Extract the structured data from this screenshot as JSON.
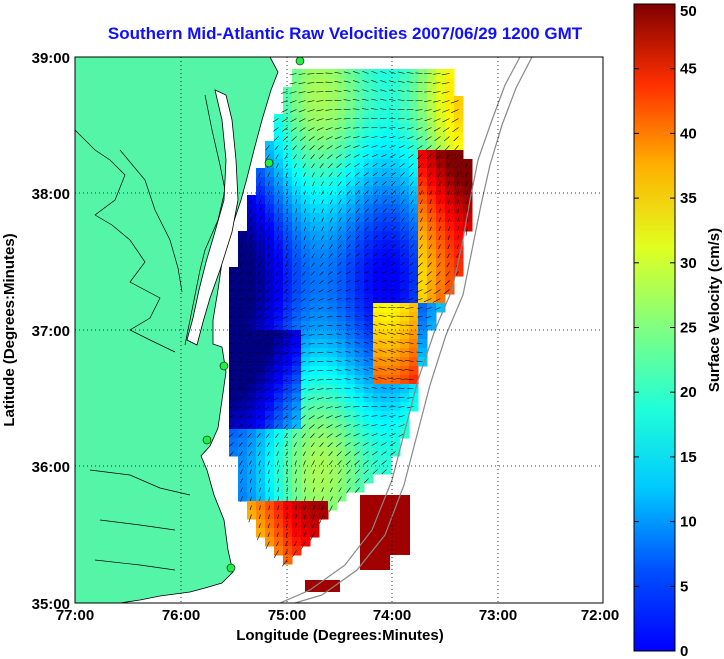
{
  "title": "Southern Mid-Atlantic Raw Velocities 2007/06/29 1200 GMT",
  "map": {
    "x_axis_label": "Longitude (Degrees:Minutes)",
    "y_axis_label": "Latitude (Degrees:Minutes)",
    "x_ticks": [
      "77:00",
      "76:00",
      "75:00",
      "74:00",
      "73:00",
      "72:00"
    ],
    "y_ticks": [
      "39:00",
      "38:00",
      "37:00",
      "36:00",
      "35:00"
    ],
    "lon_range": [
      -77,
      -72
    ],
    "lat_range": [
      35,
      39
    ],
    "grid": true,
    "land_color": "#55f5a8"
  },
  "colorbar": {
    "label": "Surface Velocity (cm/s)",
    "ticks": [
      "0",
      "5",
      "10",
      "15",
      "20",
      "25",
      "30",
      "35",
      "40",
      "45",
      "50"
    ],
    "range": [
      0,
      50
    ],
    "colormap": "jet"
  },
  "chart_data": {
    "type": "heatmap",
    "title": "Southern Mid-Atlantic Raw Velocities 2007/06/29 1200 GMT",
    "xlabel": "Longitude (Degrees:Minutes)",
    "ylabel": "Latitude (Degrees:Minutes)",
    "xlim": [
      -77,
      -72
    ],
    "ylim": [
      35,
      39
    ],
    "value_label": "Surface Velocity (cm/s)",
    "value_range": [
      0,
      50
    ]
  }
}
